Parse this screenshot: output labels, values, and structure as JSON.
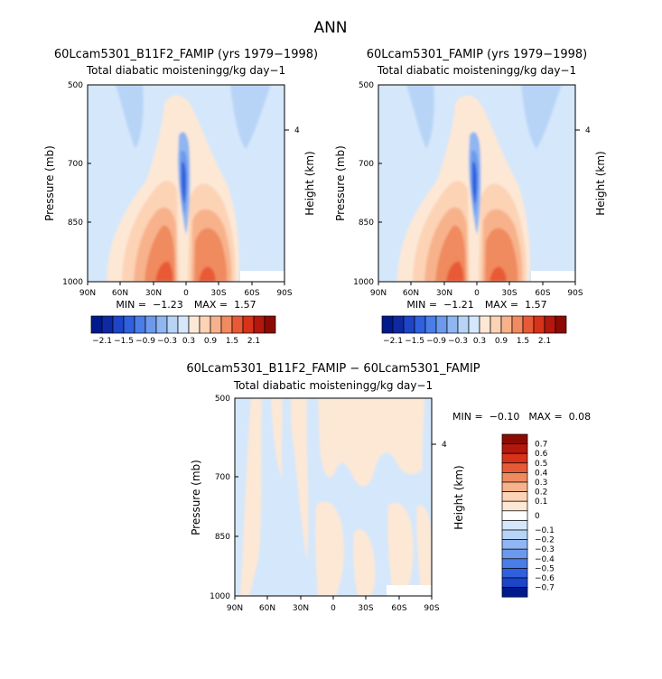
{
  "main_title": "ANN",
  "colors": {
    "background": "#ffffff",
    "panel_fill": "#d5e7fb",
    "warm_scale": [
      "#fde8d6",
      "#fcd3b5",
      "#f7b28c",
      "#f08a5f",
      "#e85a36",
      "#d8321a",
      "#b3170e",
      "#8c0a04"
    ],
    "cool_scale": [
      "#d5e7fb",
      "#b7d4f7",
      "#8fb6f1",
      "#6d99ec",
      "#4a7de7",
      "#2f60dd",
      "#1d45c9",
      "#0e29a2",
      "#001a8c"
    ]
  },
  "chart_data": [
    {
      "type": "heatmap",
      "title": "60Lcam5301_B11F2_FAMIP (yrs 1979−1998)",
      "subtitle": "Total diabatic moistening",
      "units": "g/kg day−1",
      "xlabel": "",
      "ylabel": "Pressure (mb)",
      "ylabel_right": "Height (km)",
      "x_ticks": [
        "90N",
        "60N",
        "30N",
        "0",
        "30S",
        "60S",
        "90S"
      ],
      "y_ticks": [
        500,
        700,
        850,
        1000
      ],
      "right_ticks": [
        4
      ],
      "ylim": [
        1000,
        500
      ],
      "min_label": "MIN =",
      "min_value": "−1.23",
      "max_label": "MAX =",
      "max_value": "1.57",
      "colorbar": {
        "orientation": "horizontal",
        "levels": [
          "−2.1",
          "−1.5",
          "−0.9",
          "−0.3",
          "0.3",
          "0.9",
          "1.5",
          "2.1"
        ],
        "colors": [
          "#001a8c",
          "#0e29a2",
          "#1d45c9",
          "#2f60dd",
          "#4a7de7",
          "#6d99ec",
          "#8fb6f1",
          "#b7d4f7",
          "#d5e7fb",
          "#fde8d6",
          "#fcd3b5",
          "#f7b28c",
          "#f08a5f",
          "#e85a36",
          "#d8321a",
          "#b3170e",
          "#8c0a04"
        ]
      }
    },
    {
      "type": "heatmap",
      "title": "60Lcam5301_FAMIP (yrs 1979−1998)",
      "subtitle": "Total diabatic moistening",
      "units": "g/kg day−1",
      "xlabel": "",
      "ylabel": "Pressure (mb)",
      "ylabel_right": "Height (km)",
      "x_ticks": [
        "90N",
        "60N",
        "30N",
        "0",
        "30S",
        "60S",
        "90S"
      ],
      "y_ticks": [
        500,
        700,
        850,
        1000
      ],
      "right_ticks": [
        4
      ],
      "ylim": [
        1000,
        500
      ],
      "min_label": "MIN =",
      "min_value": "−1.21",
      "max_label": "MAX =",
      "max_value": "1.57",
      "colorbar": {
        "orientation": "horizontal",
        "levels": [
          "−2.1",
          "−1.5",
          "−0.9",
          "−0.3",
          "0.3",
          "0.9",
          "1.5",
          "2.1"
        ],
        "colors": [
          "#001a8c",
          "#0e29a2",
          "#1d45c9",
          "#2f60dd",
          "#4a7de7",
          "#6d99ec",
          "#8fb6f1",
          "#b7d4f7",
          "#d5e7fb",
          "#fde8d6",
          "#fcd3b5",
          "#f7b28c",
          "#f08a5f",
          "#e85a36",
          "#d8321a",
          "#b3170e",
          "#8c0a04"
        ]
      }
    },
    {
      "type": "heatmap",
      "title": "60Lcam5301_B11F2_FAMIP − 60Lcam5301_FAMIP",
      "subtitle": "Total diabatic moistening",
      "units": "g/kg day−1",
      "xlabel": "",
      "ylabel": "Pressure (mb)",
      "ylabel_right": "Height (km)",
      "x_ticks": [
        "90N",
        "60N",
        "30N",
        "0",
        "30S",
        "60S",
        "90S"
      ],
      "y_ticks": [
        500,
        700,
        850,
        1000
      ],
      "right_ticks": [
        4
      ],
      "ylim": [
        1000,
        500
      ],
      "min_label": "MIN =",
      "min_value": "−0.10",
      "max_label": "MAX =",
      "max_value": "0.08",
      "colorbar": {
        "orientation": "vertical",
        "levels": [
          "0.7",
          "0.6",
          "0.5",
          "0.4",
          "0.3",
          "0.2",
          "0.1",
          "0",
          "−0.1",
          "−0.2",
          "−0.3",
          "−0.4",
          "−0.5",
          "−0.6",
          "−0.7"
        ],
        "colors": [
          "#8c0a04",
          "#b3170e",
          "#d8321a",
          "#e85a36",
          "#f08a5f",
          "#f7b28c",
          "#fcd3b5",
          "#fde8d6",
          "#ffffff",
          "#d5e7fb",
          "#b7d4f7",
          "#8fb6f1",
          "#6d99ec",
          "#4a7de7",
          "#2f60dd",
          "#1d45c9",
          "#001a8c"
        ]
      }
    }
  ]
}
